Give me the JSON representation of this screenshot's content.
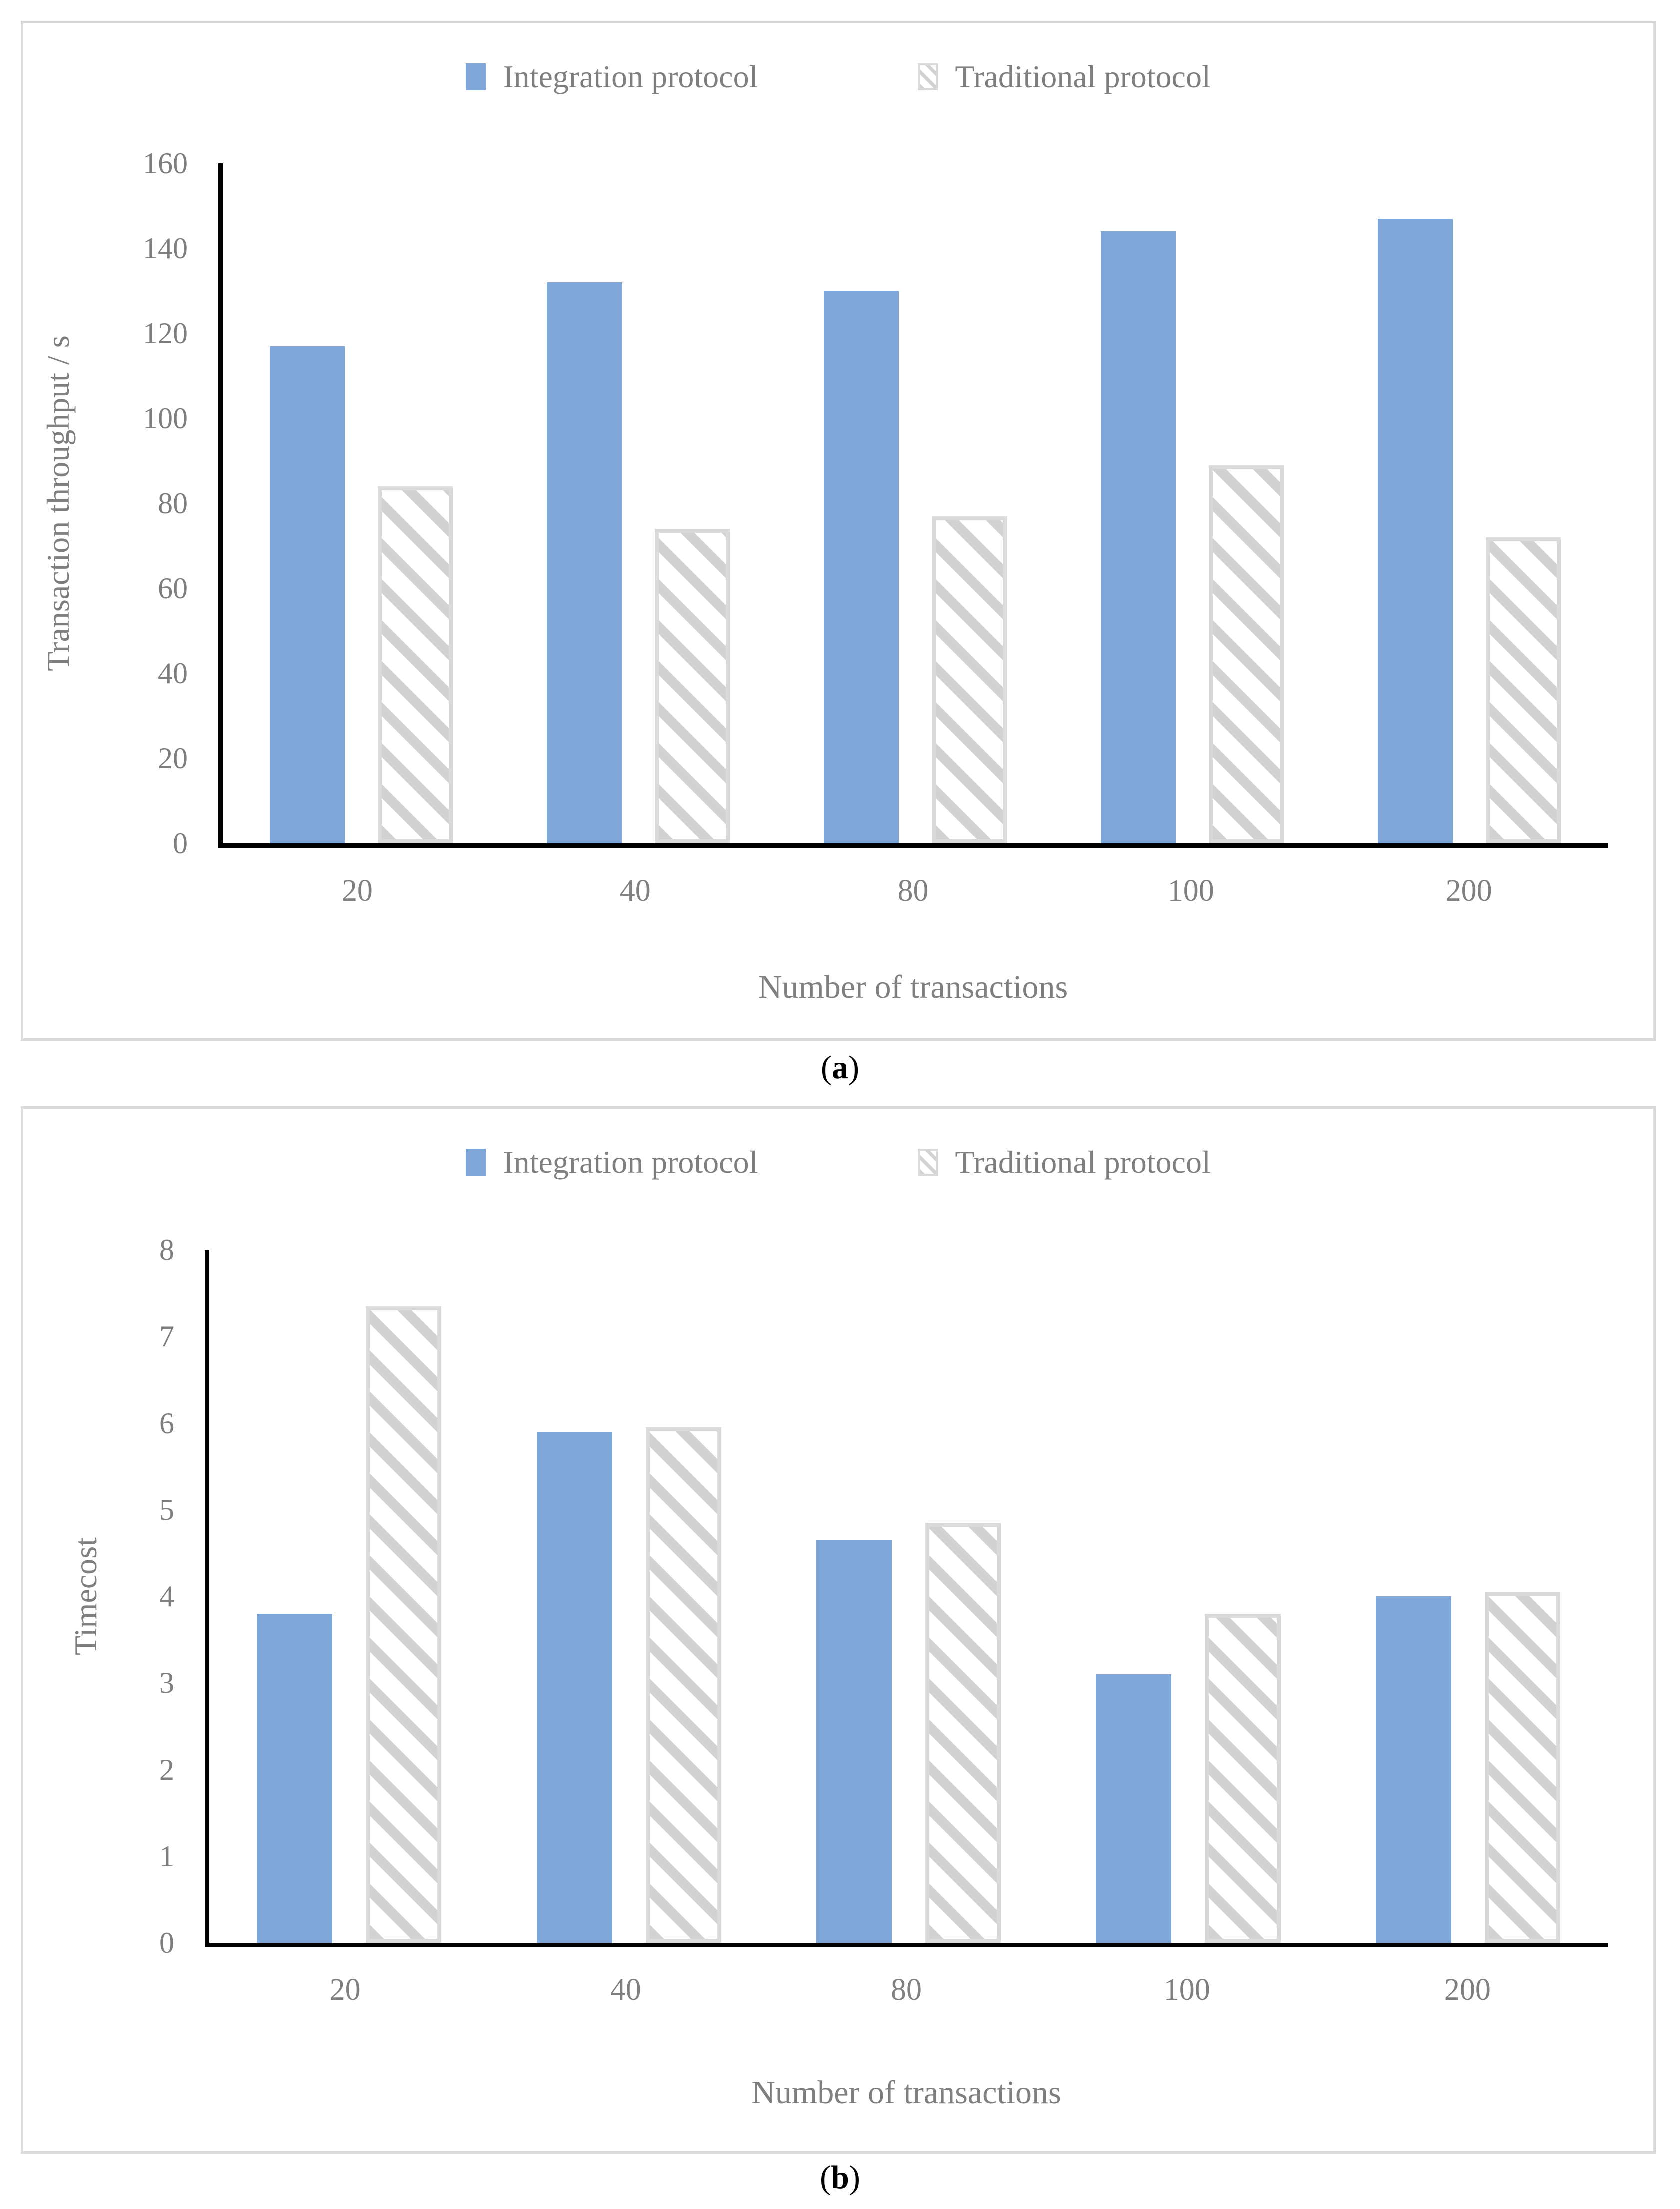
{
  "colors": {
    "integration_fill": "#7fa6d9",
    "traditional_stripe": "#d2d2d2",
    "traditional_border": "#dadada",
    "axis_line": "#000000",
    "label_text": "#7f7f7f",
    "panel_border": "#d9d9d9"
  },
  "chart_data": [
    {
      "type": "bar",
      "panel_caption": {
        "open": "(",
        "letter": "a",
        "close": ")"
      },
      "title": "",
      "categories": [
        "20",
        "40",
        "80",
        "100",
        "200"
      ],
      "series": [
        {
          "name": "Integration protocol",
          "style": "solid",
          "values": [
            117,
            132,
            130,
            144,
            147
          ]
        },
        {
          "name": "Traditional protocol",
          "style": "hatched",
          "values": [
            84,
            74,
            77,
            89,
            72
          ]
        }
      ],
      "xlabel": "Number of transactions",
      "ylabel": "Transaction throughput / s",
      "ylim": [
        0,
        160
      ],
      "ytick_step": 20,
      "grid": false,
      "legend_position": "top"
    },
    {
      "type": "bar",
      "panel_caption": {
        "open": "(",
        "letter": "b",
        "close": ")"
      },
      "title": "",
      "categories": [
        "20",
        "40",
        "80",
        "100",
        "200"
      ],
      "series": [
        {
          "name": "Integration protocol",
          "style": "solid",
          "values": [
            3.8,
            5.9,
            4.65,
            3.1,
            4.0
          ]
        },
        {
          "name": "Traditional protocol",
          "style": "hatched",
          "values": [
            7.35,
            5.95,
            4.85,
            3.8,
            4.05
          ]
        }
      ],
      "xlabel": "Number of transactions",
      "ylabel": "Timecost",
      "ylim": [
        0,
        8
      ],
      "ytick_step": 1,
      "grid": false,
      "legend_position": "top"
    }
  ]
}
